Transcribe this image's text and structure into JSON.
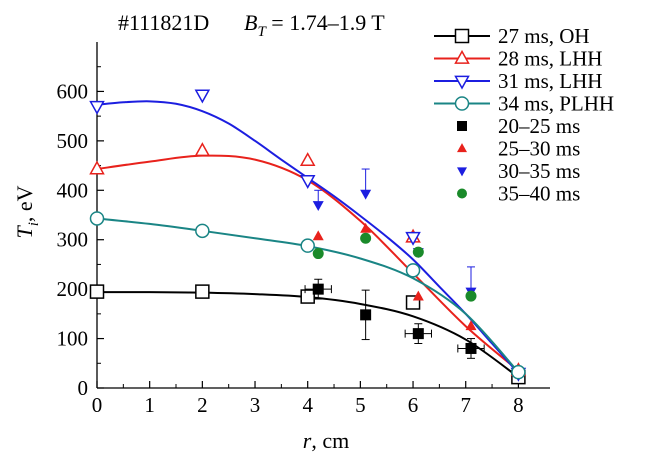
{
  "chart_data": {
    "type": "scatter",
    "title": {
      "shot": "#111821D",
      "field_symbol": "B",
      "field_sub": "T",
      "field_value": " = 1.74–1.9 T"
    },
    "xlabel": {
      "var": "r",
      "unit": ", cm"
    },
    "ylabel": {
      "var": "T",
      "sub": "i",
      "unit": ", eV"
    },
    "xlim": [
      0,
      8.6
    ],
    "ylim": [
      0,
      700
    ],
    "xticks": [
      0,
      1,
      2,
      3,
      4,
      5,
      6,
      7,
      8
    ],
    "yticks": [
      0,
      100,
      200,
      300,
      400,
      500,
      600
    ],
    "grid": false,
    "legend_position": "top-right",
    "series": [
      {
        "name": "27 ms, OH",
        "color": "#000000",
        "marker": "square-open",
        "points": [
          [
            0,
            195
          ],
          [
            2,
            195
          ],
          [
            4,
            185
          ],
          [
            6,
            173
          ],
          [
            8,
            22
          ]
        ],
        "curve": [
          [
            0,
            194
          ],
          [
            1,
            194
          ],
          [
            2,
            193
          ],
          [
            3,
            190
          ],
          [
            4,
            184
          ],
          [
            5,
            170
          ],
          [
            6,
            145
          ],
          [
            7,
            98
          ],
          [
            8,
            22
          ]
        ]
      },
      {
        "name": "28 ms, LHH",
        "color": "#e8221c",
        "marker": "triangle-up-open",
        "points": [
          [
            0,
            443
          ],
          [
            2,
            480
          ],
          [
            4,
            460
          ],
          [
            6,
            305
          ],
          [
            8,
            35
          ]
        ],
        "curve": [
          [
            0,
            443
          ],
          [
            1,
            458
          ],
          [
            2,
            470
          ],
          [
            3,
            462
          ],
          [
            4,
            420
          ],
          [
            5,
            338
          ],
          [
            6,
            232
          ],
          [
            7,
            125
          ],
          [
            8,
            35
          ]
        ]
      },
      {
        "name": "31 ms, LHH",
        "color": "#1c1ee0",
        "marker": "triangle-down-open",
        "points": [
          [
            0,
            570
          ],
          [
            2,
            593
          ],
          [
            4,
            420
          ],
          [
            6,
            305
          ],
          [
            8,
            30
          ]
        ],
        "curve": [
          [
            0,
            573
          ],
          [
            0.5,
            578
          ],
          [
            1,
            580
          ],
          [
            1.5,
            575
          ],
          [
            2,
            560
          ],
          [
            2.5,
            535
          ],
          [
            3,
            500
          ],
          [
            3.5,
            462
          ],
          [
            4,
            425
          ],
          [
            4.5,
            388
          ],
          [
            5,
            348
          ],
          [
            5.5,
            306
          ],
          [
            6,
            260
          ],
          [
            6.5,
            205
          ],
          [
            7,
            150
          ],
          [
            7.5,
            90
          ],
          [
            8,
            30
          ]
        ]
      },
      {
        "name": "34 ms, PLHH",
        "color": "#1a8585",
        "marker": "circle-open",
        "points": [
          [
            0,
            343
          ],
          [
            2,
            318
          ],
          [
            4,
            288
          ],
          [
            6,
            238
          ],
          [
            8,
            32
          ]
        ],
        "curve": [
          [
            0,
            343
          ],
          [
            1,
            332
          ],
          [
            2,
            318
          ],
          [
            3,
            303
          ],
          [
            4,
            287
          ],
          [
            5,
            262
          ],
          [
            6,
            222
          ],
          [
            7,
            150
          ],
          [
            8,
            32
          ]
        ]
      },
      {
        "name": "20–25 ms",
        "color": "#000000",
        "marker": "square-filled",
        "points": [
          [
            4.2,
            200
          ],
          [
            5.1,
            148
          ],
          [
            6.1,
            110
          ],
          [
            7.1,
            80
          ]
        ],
        "xerr": [
          0.25,
          0,
          0.25,
          0.25
        ],
        "yerr": [
          20,
          50,
          20,
          20
        ]
      },
      {
        "name": "25–30 ms",
        "color": "#e8221c",
        "marker": "triangle-up-filled",
        "points": [
          [
            4.2,
            307
          ],
          [
            5.1,
            322
          ],
          [
            6.1,
            185
          ],
          [
            7.1,
            125
          ]
        ]
      },
      {
        "name": "30–35 ms",
        "color": "#1c1ee0",
        "marker": "triangle-down-filled",
        "points": [
          [
            4.2,
            370
          ],
          [
            5.1,
            393
          ],
          [
            6.1,
            275
          ],
          [
            7.1,
            195
          ]
        ],
        "yerr_up": [
          30,
          50,
          0,
          50
        ]
      },
      {
        "name": "35–40 ms",
        "color": "#1a8a2a",
        "marker": "circle-filled",
        "points": [
          [
            4.2,
            272
          ],
          [
            5.1,
            303
          ],
          [
            6.1,
            275
          ],
          [
            7.1,
            186
          ]
        ]
      }
    ]
  }
}
